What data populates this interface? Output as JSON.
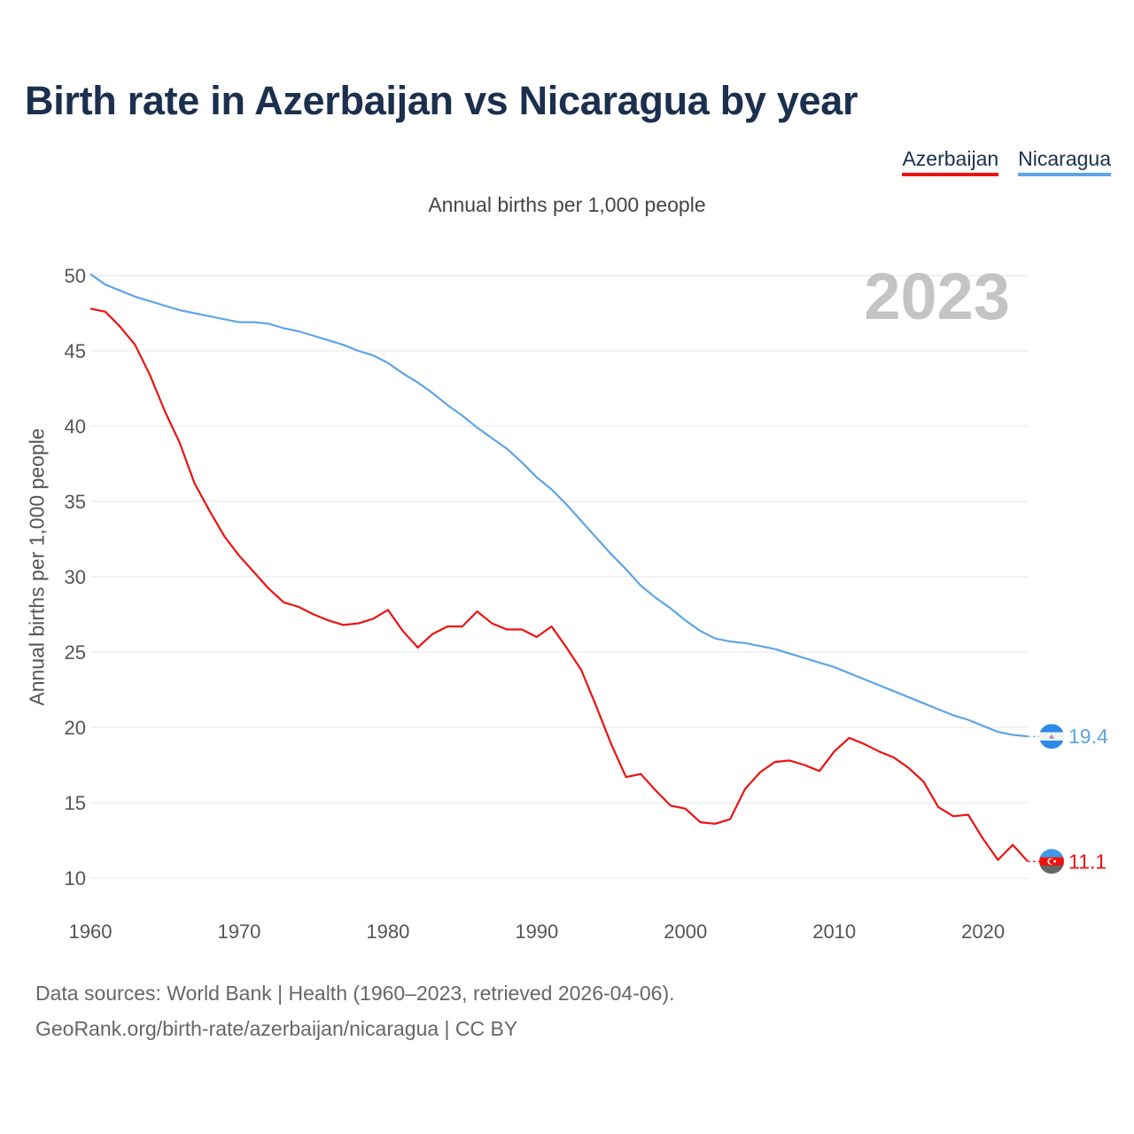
{
  "title": "Birth rate in Azerbaijan vs Nicaragua by year",
  "subtitle": "Annual births per 1,000 people",
  "legend": [
    {
      "name": "Azerbaijan",
      "color": "#ee1111"
    },
    {
      "name": "Nicaragua",
      "color": "#5da4e6"
    }
  ],
  "footer": {
    "line1": "Data sources: World Bank | Health (1960–2023, retrieved 2026-04-06).",
    "line2": "GeoRank.org/birth-rate/azerbaijan/nicaragua | CC BY"
  },
  "chart_data": {
    "type": "line",
    "title": "Birth rate in Azerbaijan vs Nicaragua by year",
    "ylabel": "Annual births per 1,000 people",
    "xlabel": "",
    "year_watermark": "2023",
    "xlim": [
      1960,
      2023
    ],
    "ylim": [
      10,
      50
    ],
    "xticks": [
      1960,
      1970,
      1980,
      1990,
      2000,
      2010,
      2020
    ],
    "yticks": [
      10,
      15,
      20,
      25,
      30,
      35,
      40,
      45,
      50
    ],
    "x": [
      1960,
      1961,
      1962,
      1963,
      1964,
      1965,
      1966,
      1967,
      1968,
      1969,
      1970,
      1971,
      1972,
      1973,
      1974,
      1975,
      1976,
      1977,
      1978,
      1979,
      1980,
      1981,
      1982,
      1983,
      1984,
      1985,
      1986,
      1987,
      1988,
      1989,
      1990,
      1991,
      1992,
      1993,
      1994,
      1995,
      1996,
      1997,
      1998,
      1999,
      2000,
      2001,
      2002,
      2003,
      2004,
      2005,
      2006,
      2007,
      2008,
      2009,
      2010,
      2011,
      2012,
      2013,
      2014,
      2015,
      2016,
      2017,
      2018,
      2019,
      2020,
      2021,
      2022,
      2023
    ],
    "series": [
      {
        "name": "Azerbaijan",
        "color": "#ee1111",
        "end_label": "11.1",
        "values": [
          47.8,
          47.6,
          46.6,
          45.4,
          43.4,
          41.0,
          38.9,
          36.2,
          34.4,
          32.7,
          31.4,
          30.3,
          29.2,
          28.3,
          28.0,
          27.5,
          27.1,
          26.8,
          26.9,
          27.2,
          27.8,
          26.4,
          25.3,
          26.2,
          26.7,
          26.7,
          27.7,
          26.9,
          26.5,
          26.5,
          26.0,
          26.7,
          25.3,
          23.8,
          21.4,
          18.9,
          16.7,
          16.9,
          15.8,
          14.8,
          14.6,
          13.7,
          13.6,
          13.9,
          15.9,
          17.0,
          17.7,
          17.8,
          17.5,
          17.1,
          18.4,
          19.3,
          18.9,
          18.4,
          18.0,
          17.3,
          16.4,
          14.7,
          14.1,
          14.2,
          12.6,
          11.2,
          12.2,
          11.1
        ]
      },
      {
        "name": "Nicaragua",
        "color": "#5da4e6",
        "end_label": "19.4",
        "values": [
          50.1,
          49.4,
          49.0,
          48.6,
          48.3,
          48.0,
          47.7,
          47.5,
          47.3,
          47.1,
          46.9,
          46.9,
          46.8,
          46.5,
          46.3,
          46.0,
          45.7,
          45.4,
          45.0,
          44.7,
          44.2,
          43.5,
          42.9,
          42.2,
          41.4,
          40.7,
          39.9,
          39.2,
          38.5,
          37.6,
          36.6,
          35.8,
          34.8,
          33.7,
          32.6,
          31.5,
          30.5,
          29.4,
          28.6,
          27.9,
          27.1,
          26.4,
          25.9,
          25.7,
          25.6,
          25.4,
          25.2,
          24.9,
          24.6,
          24.3,
          24.0,
          23.6,
          23.2,
          22.8,
          22.4,
          22.0,
          21.6,
          21.2,
          20.8,
          20.5,
          20.1,
          19.7,
          19.5,
          19.4
        ]
      }
    ]
  }
}
